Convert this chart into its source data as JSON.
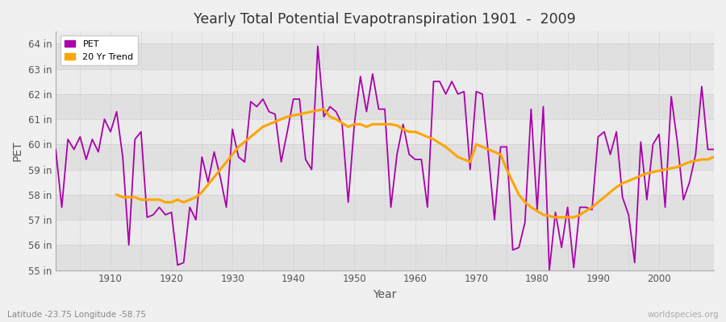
{
  "title": "Yearly Total Potential Evapotranspiration 1901  -  2009",
  "xlabel": "Year",
  "ylabel": "PET",
  "lat_lon_label": "Latitude -23.75 Longitude -58.75",
  "watermark": "worldspecies.org",
  "pet_color": "#AA00AA",
  "trend_color": "#FFA500",
  "fig_bg_color": "#F0F0F0",
  "plot_bg_color": "#F0F0F0",
  "band_color_light": "#EBEBEB",
  "band_color_dark": "#E0E0E0",
  "grid_color": "#CCCCCC",
  "ylim": [
    55.0,
    64.5
  ],
  "ytick_labels": [
    "55 in",
    "56 in",
    "57 in",
    "58 in",
    "59 in",
    "60 in",
    "61 in",
    "62 in",
    "63 in",
    "64 in"
  ],
  "ytick_values": [
    55,
    56,
    57,
    58,
    59,
    60,
    61,
    62,
    63,
    64
  ],
  "xlim": [
    1901,
    2009
  ],
  "years": [
    1901,
    1902,
    1903,
    1904,
    1905,
    1906,
    1907,
    1908,
    1909,
    1910,
    1911,
    1912,
    1913,
    1914,
    1915,
    1916,
    1917,
    1918,
    1919,
    1920,
    1921,
    1922,
    1923,
    1924,
    1925,
    1926,
    1927,
    1928,
    1929,
    1930,
    1931,
    1932,
    1933,
    1934,
    1935,
    1936,
    1937,
    1938,
    1939,
    1940,
    1941,
    1942,
    1943,
    1944,
    1945,
    1946,
    1947,
    1948,
    1949,
    1950,
    1951,
    1952,
    1953,
    1954,
    1955,
    1956,
    1957,
    1958,
    1959,
    1960,
    1961,
    1962,
    1963,
    1964,
    1965,
    1966,
    1967,
    1968,
    1969,
    1970,
    1971,
    1972,
    1973,
    1974,
    1975,
    1976,
    1977,
    1978,
    1979,
    1980,
    1981,
    1982,
    1983,
    1984,
    1985,
    1986,
    1987,
    1988,
    1989,
    1990,
    1991,
    1992,
    1993,
    1994,
    1995,
    1996,
    1997,
    1998,
    1999,
    2000,
    2001,
    2002,
    2003,
    2004,
    2005,
    2006,
    2007,
    2008,
    2009
  ],
  "pet_values": [
    59.8,
    57.5,
    60.2,
    59.8,
    60.3,
    59.4,
    60.2,
    59.7,
    61.0,
    60.5,
    61.3,
    59.5,
    56.0,
    60.2,
    60.5,
    57.1,
    57.2,
    57.5,
    57.2,
    57.3,
    55.2,
    55.3,
    57.5,
    57.0,
    59.5,
    58.5,
    59.7,
    58.7,
    57.5,
    60.6,
    59.5,
    59.3,
    61.7,
    61.5,
    61.8,
    61.3,
    61.2,
    59.3,
    60.5,
    61.8,
    61.8,
    59.4,
    59.0,
    63.9,
    61.1,
    61.5,
    61.3,
    60.8,
    57.7,
    60.8,
    62.7,
    61.3,
    62.8,
    61.4,
    61.4,
    57.5,
    59.6,
    60.8,
    59.6,
    59.4,
    59.4,
    57.5,
    62.5,
    62.5,
    62.0,
    62.5,
    62.0,
    62.1,
    59.0,
    62.1,
    62.0,
    59.6,
    57.0,
    59.9,
    59.9,
    55.8,
    55.9,
    56.9,
    61.4,
    57.4,
    61.5,
    55.0,
    57.3,
    55.9,
    57.5,
    55.1,
    57.5,
    57.5,
    57.4,
    60.3,
    60.5,
    59.6,
    60.5,
    57.9,
    57.2,
    55.3,
    60.1,
    57.8,
    60.0,
    60.4,
    57.5,
    61.9,
    60.1,
    57.8,
    58.5,
    59.6,
    62.3,
    59.8,
    59.8
  ],
  "trend_years": [
    1911,
    1912,
    1913,
    1914,
    1915,
    1916,
    1917,
    1918,
    1919,
    1920,
    1921,
    1922,
    1923,
    1924,
    1925,
    1926,
    1927,
    1928,
    1929,
    1930,
    1931,
    1932,
    1933,
    1934,
    1935,
    1936,
    1937,
    1938,
    1939,
    1940,
    1941,
    1942,
    1943,
    1944,
    1945,
    1946,
    1947,
    1948,
    1949,
    1950,
    1951,
    1952,
    1953,
    1954,
    1955,
    1956,
    1957,
    1958,
    1959,
    1960,
    1961,
    1962,
    1963,
    1964,
    1965,
    1966,
    1967,
    1968,
    1969,
    1970,
    1971,
    1972,
    1973,
    1974,
    1975,
    1976,
    1977,
    1978,
    1979,
    1980,
    1981,
    1982,
    1983,
    1984,
    1985,
    1986,
    1987,
    1988,
    1989,
    1990,
    1991,
    1992,
    1993,
    1994,
    1995,
    1996,
    1997,
    1998,
    1999,
    2000,
    2001,
    2002,
    2003,
    2004,
    2005,
    2006,
    2007,
    2008,
    2009
  ],
  "trend_values": [
    58.0,
    57.9,
    57.9,
    57.9,
    57.8,
    57.8,
    57.8,
    57.8,
    57.7,
    57.7,
    57.8,
    57.7,
    57.8,
    57.9,
    58.1,
    58.4,
    58.7,
    59.0,
    59.3,
    59.6,
    59.9,
    60.1,
    60.3,
    60.5,
    60.7,
    60.8,
    60.9,
    61.0,
    61.1,
    61.15,
    61.2,
    61.25,
    61.3,
    61.35,
    61.4,
    61.1,
    61.0,
    60.85,
    60.7,
    60.8,
    60.8,
    60.7,
    60.8,
    60.8,
    60.8,
    60.8,
    60.75,
    60.6,
    60.5,
    60.5,
    60.4,
    60.3,
    60.2,
    60.05,
    59.9,
    59.7,
    59.5,
    59.4,
    59.3,
    60.0,
    59.9,
    59.8,
    59.7,
    59.6,
    59.0,
    58.5,
    58.0,
    57.7,
    57.5,
    57.35,
    57.2,
    57.15,
    57.1,
    57.1,
    57.1,
    57.1,
    57.2,
    57.35,
    57.5,
    57.7,
    57.9,
    58.1,
    58.3,
    58.45,
    58.55,
    58.65,
    58.75,
    58.85,
    58.9,
    58.95,
    59.0,
    59.05,
    59.1,
    59.2,
    59.3,
    59.35,
    59.4,
    59.4,
    59.5
  ]
}
